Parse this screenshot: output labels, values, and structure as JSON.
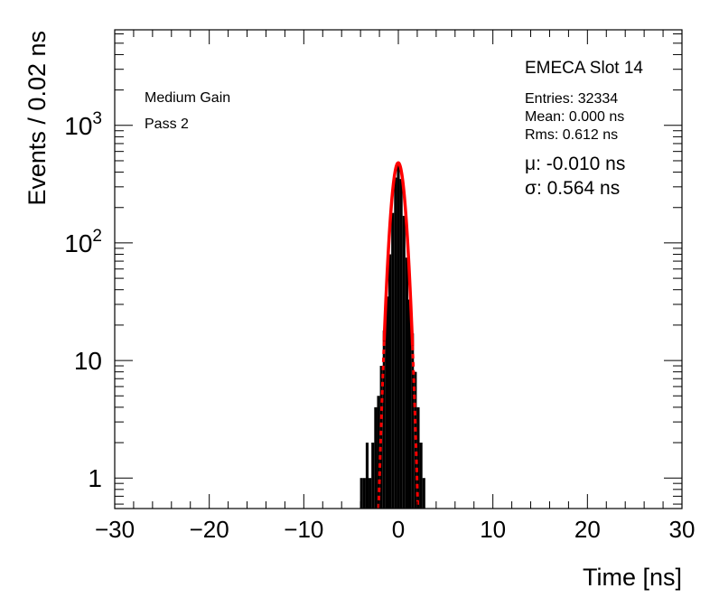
{
  "chart_data": {
    "type": "histogram",
    "ylog": true,
    "xlabel": "Time [ns]",
    "ylabel": "Events / 0.02 ns",
    "xlim": [
      -30,
      30
    ],
    "ylim": [
      0.55,
      6500
    ],
    "x_ticks": [
      -30,
      -20,
      -10,
      0,
      10,
      20,
      30
    ],
    "x_tick_labels": [
      "−30",
      "−20",
      "−10",
      "0",
      "10",
      "20",
      "30"
    ],
    "y_ticks": [
      1,
      10,
      100,
      1000
    ],
    "y_tick_labels": [
      {
        "base": "1",
        "exp": ""
      },
      {
        "base": "10",
        "exp": ""
      },
      {
        "base": "10",
        "exp": "2"
      },
      {
        "base": "10",
        "exp": "3"
      }
    ],
    "left_labels": [
      "Medium Gain",
      "Pass 2"
    ],
    "stats": {
      "title": "EMECA Slot 14",
      "entries": "Entries: 32334",
      "mean": "Mean: 0.000 ns",
      "rms": "Rms: 0.612 ns"
    },
    "fit": {
      "mu_label": "μ: -0.010 ns",
      "sigma_label": "σ: 0.564 ns",
      "mu": -0.01,
      "sigma": 0.564,
      "peak": 480,
      "fit_range": [
        -1.5,
        1.5
      ],
      "color": "#ff0000"
    },
    "bins": [
      [
        -3.9,
        1
      ],
      [
        -3.6,
        1
      ],
      [
        -3.3,
        2
      ],
      [
        -3.0,
        1
      ],
      [
        -2.7,
        2
      ],
      [
        -2.4,
        4
      ],
      [
        -2.1,
        5
      ],
      [
        -1.8,
        9
      ],
      [
        -1.5,
        18
      ],
      [
        -1.2,
        35
      ],
      [
        -0.9,
        80
      ],
      [
        -0.6,
        180
      ],
      [
        -0.3,
        360
      ],
      [
        0.0,
        480
      ],
      [
        0.3,
        350
      ],
      [
        0.6,
        170
      ],
      [
        0.9,
        75
      ],
      [
        1.2,
        33
      ],
      [
        1.5,
        17
      ],
      [
        1.8,
        8
      ],
      [
        2.1,
        4
      ],
      [
        2.4,
        2
      ],
      [
        2.7,
        1
      ]
    ],
    "colors": {
      "histogram": "#000000",
      "fit": "#ff0000"
    }
  }
}
